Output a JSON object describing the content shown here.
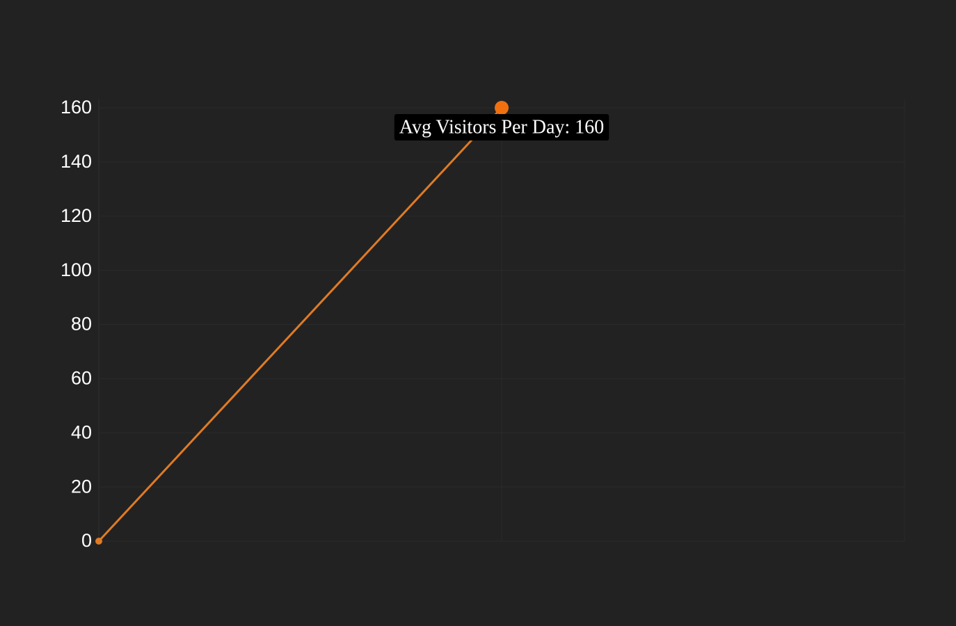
{
  "chart_data": {
    "type": "line",
    "categories": [
      null,
      null,
      null
    ],
    "series": [
      {
        "color": "#e07b24",
        "values": [
          0,
          160,
          null
        ]
      }
    ],
    "ylim": [
      0,
      160
    ],
    "yticks": [
      0,
      20,
      40,
      60,
      80,
      100,
      120,
      140,
      160
    ],
    "grid": true,
    "tooltip": {
      "text": "Avg Visitors Per Day: 160",
      "point": 1
    }
  }
}
